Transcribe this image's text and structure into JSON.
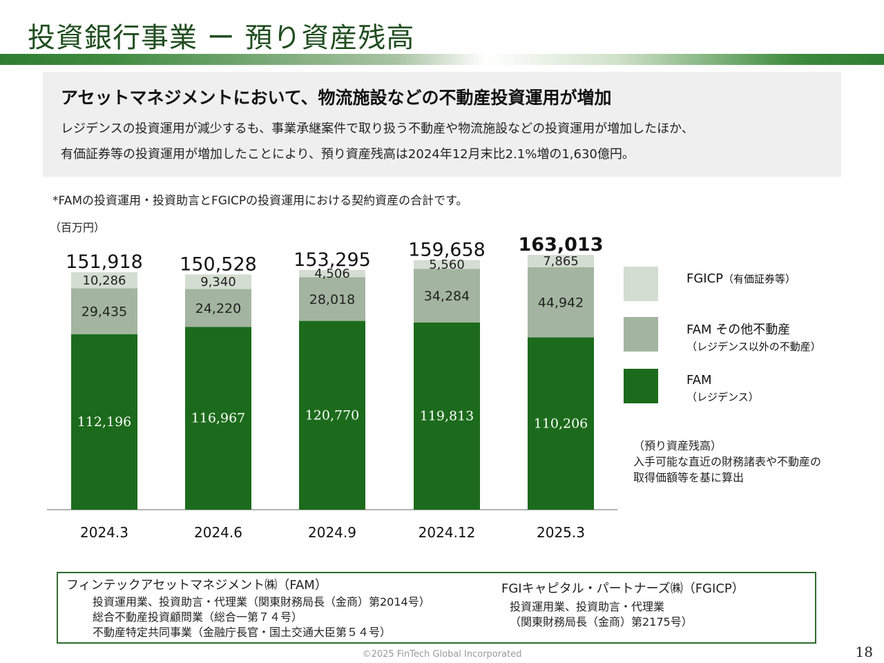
{
  "page": {
    "title": "投資銀行事業 ー 預り資産残高",
    "headline": "アセットマネジメントにおいて、物流施設などの不動産投資運用が増加",
    "body_line1": "レジデンスの投資運用が減少するも、事業承継案件で取り扱う不動産や物流施設などの投資運用が増加したほか、",
    "body_line2": "有価証券等の投資運用が増加したことにより、預り資産残高は2024年12月末比2.1%増の1,630億円。",
    "note": "*FAMの投資運用・投資助言とFGICPの投資運用における契約資産の合計です。",
    "unit": "（百万円）",
    "calc_note": "（預り資産残高）\n入手可能な直近の財務諸表や不動産の\n取得価額等を基に算出",
    "page_number": "18",
    "copyright": "©2025 FinTech Global Incorporated"
  },
  "legend": [
    {
      "label": "FGICP",
      "sub": "（有価証券等）",
      "color": "#d4ddd2"
    },
    {
      "label": "FAM その他不動産",
      "sub": "（レジデンス以外の不動産）",
      "color": "#a3b5a0"
    },
    {
      "label": "FAM",
      "sub": "（レジデンス）",
      "color": "#1c6b1c"
    }
  ],
  "footer": {
    "fam_title": "フィンテックアセットマネジメント㈱（FAM）",
    "fam_lines": "投資運用業、投資助言・代理業（関東財務局長（金商）第2014号）\n総合不動産投資顧問業（総合一第７４号）\n不動産特定共同事業（金融庁長官・国土交通大臣第５４号）",
    "fgi_title": "FGIキャピタル・パートナーズ㈱（FGICP）",
    "fgi_lines": "投資運用業、投資助言・代理業\n（関東財務局長（金商）第2175号）"
  },
  "chart_data": {
    "type": "bar",
    "stacked": true,
    "categories": [
      "2024.3",
      "2024.6",
      "2024.9",
      "2024.12",
      "2025.3"
    ],
    "series": [
      {
        "name": "FAM（レジデンス）",
        "values": [
          112196,
          116967,
          120770,
          119813,
          110206
        ],
        "color": "#1c6b1c"
      },
      {
        "name": "FAM その他不動産（レジデンス以外の不動産）",
        "values": [
          29435,
          24220,
          28018,
          34284,
          44942
        ],
        "color": "#a3b5a0"
      },
      {
        "name": "FGICP（有価証券等）",
        "values": [
          10286,
          9340,
          4506,
          5560,
          7865
        ],
        "color": "#d4ddd2"
      }
    ],
    "totals": [
      151918,
      150528,
      153295,
      159658,
      163013
    ],
    "total_labels": [
      "151,918",
      "150,528",
      "153,295",
      "159,658",
      "163,013"
    ],
    "labels": [
      [
        "112,196",
        "116,967",
        "120,770",
        "119,813",
        "110,206"
      ],
      [
        "29,435",
        "24,220",
        "28,018",
        "34,284",
        "44,942"
      ],
      [
        "10,286",
        "9,340",
        "4,506",
        "5,560",
        "7,865"
      ]
    ],
    "highlight_last_total": true,
    "ylim": [
      0,
      163013
    ],
    "ylabel": "（百万円）",
    "grid": false,
    "legend_position": "right"
  }
}
